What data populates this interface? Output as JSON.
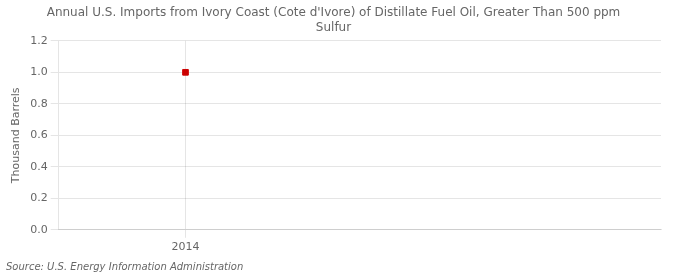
{
  "chart_data": {
    "type": "scatter",
    "title": "Annual U.S. Imports from Ivory Coast (Cote d'Ivore) of Distillate Fuel Oil, Greater Than 500 ppm\nSulfur",
    "y_label": "Thousand Barrels",
    "annotations": [
      "Source: U.S. Energy Information Administration"
    ],
    "x": [
      2014
    ],
    "values": [
      1.0
    ],
    "color": "#cc0000",
    "marker": "square",
    "xlim": [
      2013.6,
      2015.5
    ],
    "xticks": [
      2014
    ],
    "ylim": [
      0.0,
      1.2
    ],
    "yticks": [
      {
        "value": 0.0,
        "label": "0.0"
      },
      0.2,
      0.4,
      0.6,
      0.8,
      {
        "value": 1.0,
        "label": "1.0"
      },
      1.2
    ],
    "grid": true
  }
}
